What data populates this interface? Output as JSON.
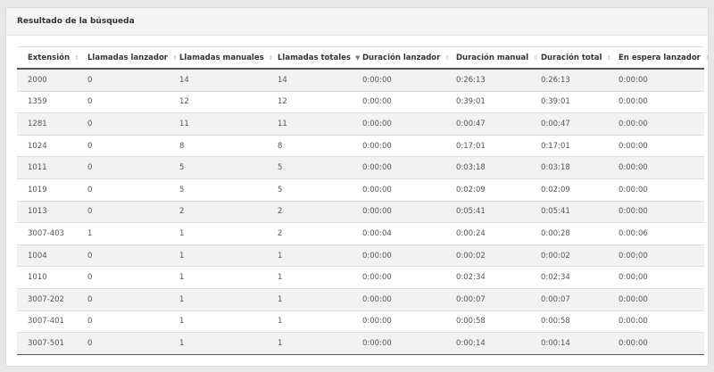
{
  "panel": {
    "title": "Resultado de la búsqueda"
  },
  "table": {
    "columns": [
      {
        "label": "Extensión",
        "sort": "none"
      },
      {
        "label": "Llamadas lanzador",
        "sort": "none"
      },
      {
        "label": "Llamadas manuales",
        "sort": "none"
      },
      {
        "label": "Llamadas totales",
        "sort": "desc"
      },
      {
        "label": "Duración lanzador",
        "sort": "none"
      },
      {
        "label": "Duración manual",
        "sort": "none"
      },
      {
        "label": "Duración total",
        "sort": "none"
      },
      {
        "label": "En espera lanzador",
        "sort": "none"
      }
    ],
    "rows": [
      [
        "2000",
        "0",
        "14",
        "14",
        "0:00:00",
        "0:26:13",
        "0:26:13",
        "0:00:00"
      ],
      [
        "1359",
        "0",
        "12",
        "12",
        "0:00:00",
        "0:39:01",
        "0:39:01",
        "0:00:00"
      ],
      [
        "1281",
        "0",
        "11",
        "11",
        "0:00:00",
        "0:00:47",
        "0:00:47",
        "0:00:00"
      ],
      [
        "1024",
        "0",
        "8",
        "8",
        "0:00:00",
        "0:17:01",
        "0:17:01",
        "0:00:00"
      ],
      [
        "1011",
        "0",
        "5",
        "5",
        "0:00:00",
        "0:03:18",
        "0:03:18",
        "0:00:00"
      ],
      [
        "1019",
        "0",
        "5",
        "5",
        "0:00:00",
        "0:02:09",
        "0:02:09",
        "0:00:00"
      ],
      [
        "1013",
        "0",
        "2",
        "2",
        "0:00:00",
        "0:05:41",
        "0:05:41",
        "0:00:00"
      ],
      [
        "3007-403",
        "1",
        "1",
        "2",
        "0:00:04",
        "0:00:24",
        "0:00:28",
        "0:00:06"
      ],
      [
        "1004",
        "0",
        "1",
        "1",
        "0:00:00",
        "0:00:02",
        "0:00:02",
        "0:00:00"
      ],
      [
        "1010",
        "0",
        "1",
        "1",
        "0:00:00",
        "0:02:34",
        "0:02:34",
        "0:00:00"
      ],
      [
        "3007-202",
        "0",
        "1",
        "1",
        "0:00:00",
        "0:00:07",
        "0:00:07",
        "0:00:00"
      ],
      [
        "3007-401",
        "0",
        "1",
        "1",
        "0:00:00",
        "0:00:58",
        "0:00:58",
        "0:00:00"
      ],
      [
        "3007-501",
        "0",
        "1",
        "1",
        "0:00:00",
        "0:00:14",
        "0:00:14",
        "0:00:00"
      ]
    ]
  }
}
